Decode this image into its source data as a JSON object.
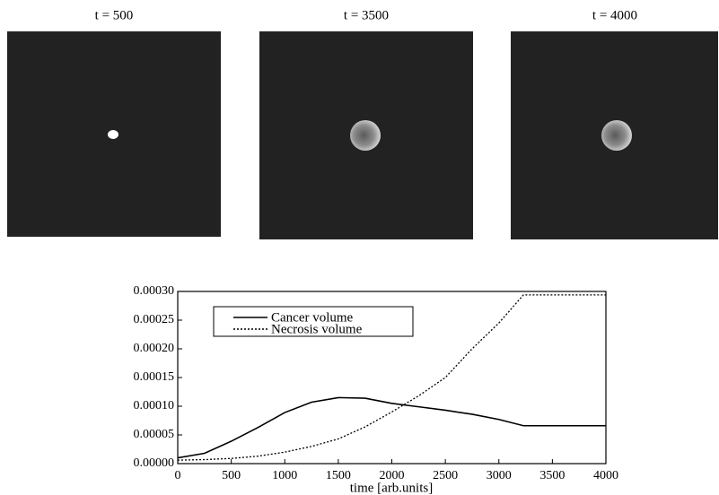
{
  "panels": [
    {
      "title": "t = 500"
    },
    {
      "title": "t = 3500"
    },
    {
      "title": "t = 4000"
    }
  ],
  "chart_data": {
    "type": "line",
    "xlabel": "time [arb.units]",
    "x": [
      0,
      250,
      500,
      750,
      1000,
      1250,
      1500,
      1750,
      2000,
      2250,
      2500,
      2750,
      3000,
      3230,
      3500,
      3750,
      4000
    ],
    "series": [
      {
        "name": "Cancer volume",
        "color": "#000000",
        "style": "solid",
        "values": [
          1e-05,
          1.8e-05,
          3.9e-05,
          6.3e-05,
          8.9e-05,
          0.000107,
          0.000115,
          0.000114,
          0.000105,
          9.9e-05,
          9.3e-05,
          8.6e-05,
          7.7e-05,
          6.6e-05,
          6.6e-05,
          6.6e-05,
          6.6e-05
        ]
      },
      {
        "name": "Necrosis volume",
        "color": "#000000",
        "style": "dotted",
        "values": [
          6e-06,
          7e-06,
          9e-06,
          1.3e-05,
          2e-05,
          3e-05,
          4.3e-05,
          6.4e-05,
          9e-05,
          0.000118,
          0.00015,
          0.0002,
          0.000245,
          0.000294,
          0.000294,
          0.000294,
          0.000294
        ]
      }
    ],
    "xlim": [
      0,
      4000
    ],
    "xticks": [
      0,
      500,
      1000,
      1500,
      2000,
      2500,
      3000,
      3500,
      4000
    ],
    "ylim": [
      0,
      0.0003
    ],
    "yticks": [
      {
        "value": 0,
        "label": "0.00000"
      },
      {
        "value": 5e-05,
        "label": "0.00005"
      },
      {
        "value": 0.0001,
        "label": "0.00010"
      },
      {
        "value": 0.00015,
        "label": "0.00015"
      },
      {
        "value": 0.0002,
        "label": "0.00020"
      },
      {
        "value": 0.00025,
        "label": "0.00025"
      },
      {
        "value": 0.0003,
        "label": "0.00030"
      }
    ],
    "legend": "upper-left"
  }
}
